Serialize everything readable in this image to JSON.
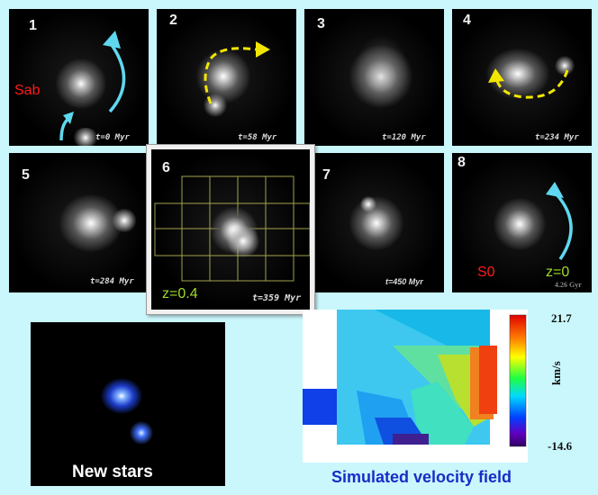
{
  "panels": [
    {
      "num": "1",
      "time": "t=0  Myr"
    },
    {
      "num": "2",
      "time": "t=58 Myr"
    },
    {
      "num": "3",
      "time": "t=120 Myr"
    },
    {
      "num": "4",
      "time": "t=234 Myr"
    },
    {
      "num": "5",
      "time": "t=284 Myr"
    },
    {
      "num": "6",
      "time": "t=359 Myr",
      "redshift": "z=0.4"
    },
    {
      "num": "7",
      "time": "t=450 Myr"
    },
    {
      "num": "8",
      "time": "4.26 Gyr",
      "redshift": "z=0"
    }
  ],
  "labels": {
    "type_start": "Sab",
    "type_end": "S0",
    "new_stars": "New stars",
    "velocity_title": "Simulated velocity field"
  },
  "colorbar": {
    "max": "21.7",
    "min": "-14.6",
    "unit": "km/s"
  },
  "colors": {
    "arrow_cyan": "#5fd8ef",
    "arrow_yellow": "#f2e600",
    "title_blue": "#1a2cc8",
    "label_red": "#ff1a1a",
    "label_green": "#9fdc2a"
  }
}
